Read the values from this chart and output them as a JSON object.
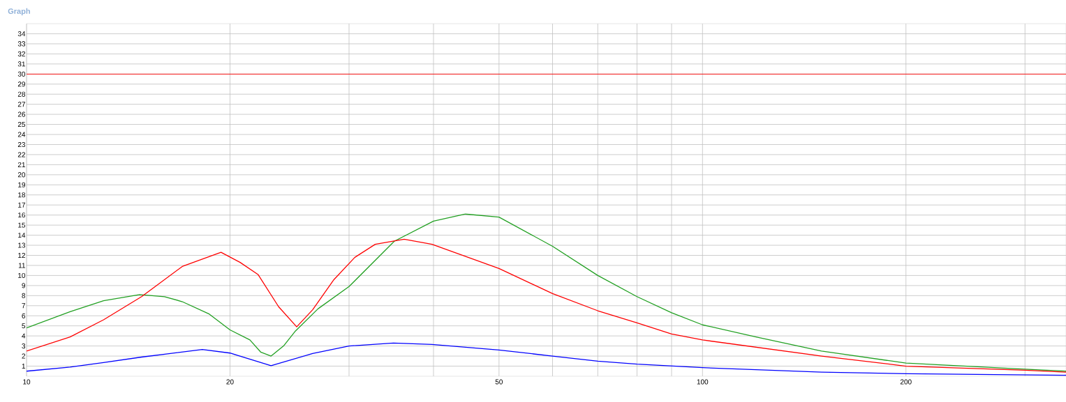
{
  "chart_data": {
    "type": "line",
    "title": "Graph",
    "xlim": [
      10,
      345
    ],
    "xticks": [
      10,
      20,
      {
        "value": 30,
        "label": null
      },
      {
        "value": 40,
        "label": null
      },
      50,
      {
        "value": 60,
        "label": null
      },
      {
        "value": 70,
        "label": null
      },
      {
        "value": 80,
        "label": null
      },
      {
        "value": 90,
        "label": null
      },
      100,
      200,
      {
        "value": 300,
        "label": null
      }
    ],
    "ylim": [
      0,
      35
    ],
    "yticks": [
      1,
      2,
      3,
      4,
      5,
      6,
      7,
      8,
      9,
      10,
      11,
      12,
      13,
      14,
      15,
      16,
      17,
      18,
      19,
      20,
      21,
      22,
      23,
      24,
      25,
      26,
      27,
      28,
      29,
      30,
      31,
      32,
      33,
      34
    ],
    "log": "x",
    "grid": true,
    "marker": "none",
    "line_style": "solid",
    "ref_lines": [
      {
        "axis": "y",
        "value": 30,
        "color": "#ff0000"
      }
    ],
    "series": [
      {
        "color": "#22a022",
        "x": [
          10,
          11.6,
          13,
          14.7,
          16,
          17,
          18.6,
          20,
          21.4,
          22.2,
          23,
          24,
          25,
          27,
          30,
          35,
          40,
          44.6,
          50,
          60,
          70,
          80,
          90,
          100,
          120,
          150,
          200,
          300,
          345
        ],
        "values": [
          4.8,
          6.4,
          7.5,
          8.1,
          7.9,
          7.4,
          6.2,
          4.6,
          3.6,
          2.4,
          2.0,
          3.0,
          4.5,
          6.7,
          8.9,
          13.4,
          15.4,
          16.1,
          15.8,
          12.9,
          10.0,
          7.9,
          6.3,
          5.1,
          3.9,
          2.5,
          1.3,
          0.7,
          0.5
        ]
      },
      {
        "color": "#ff0000",
        "x": [
          10,
          11.6,
          13,
          14.8,
          17,
          19.4,
          20.7,
          22,
          23.6,
          25.1,
          26.5,
          28.5,
          30.6,
          32.8,
          36.2,
          39.8,
          50,
          60,
          70,
          80,
          90,
          100,
          150,
          200,
          300,
          345
        ],
        "values": [
          2.5,
          3.9,
          5.6,
          7.9,
          10.9,
          12.3,
          11.3,
          10.1,
          6.9,
          4.9,
          6.6,
          9.6,
          11.8,
          13.1,
          13.6,
          13.1,
          10.7,
          8.2,
          6.5,
          5.3,
          4.2,
          3.6,
          2.0,
          1.0,
          0.6,
          0.4
        ]
      },
      {
        "color": "#0000ff",
        "x": [
          10,
          11.6,
          13,
          14.8,
          18.2,
          20,
          23,
          26.5,
          30,
          34.9,
          39.8,
          50,
          60,
          70,
          80,
          100,
          150,
          200,
          345
        ],
        "values": [
          0.5,
          0.9,
          1.35,
          1.9,
          2.65,
          2.3,
          1.05,
          2.25,
          3.0,
          3.3,
          3.15,
          2.6,
          2.0,
          1.5,
          1.2,
          0.85,
          0.4,
          0.25,
          0.1
        ]
      }
    ]
  }
}
